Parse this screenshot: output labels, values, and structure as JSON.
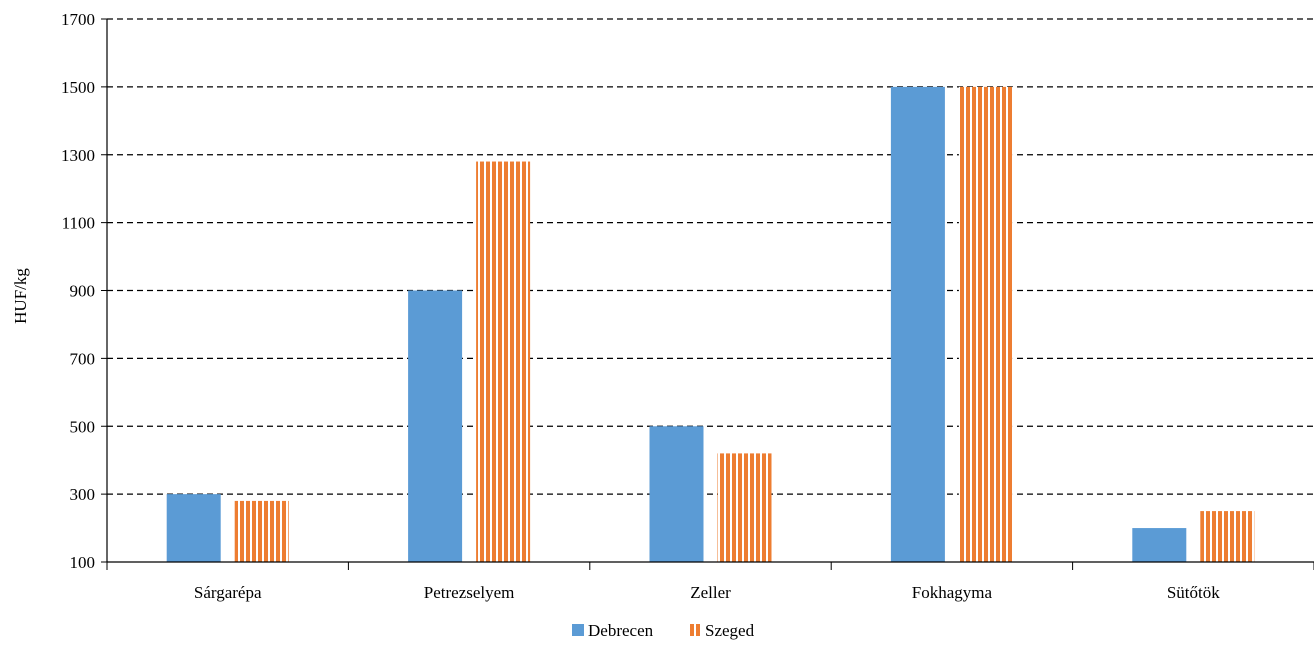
{
  "chart_data": {
    "type": "bar",
    "title": "",
    "xlabel": "",
    "ylabel": "HUF/kg",
    "ylim": [
      100,
      1700
    ],
    "yticks": [
      100,
      300,
      500,
      700,
      900,
      1100,
      1300,
      1500,
      1700
    ],
    "grid": "horizontal dashed",
    "legend_position": "bottom-center",
    "categories": [
      "Sárgarépa",
      "Petrezselyem",
      "Zeller",
      "Fokhagyma",
      "Sütőtök"
    ],
    "series": [
      {
        "name": "Debrecen",
        "values": [
          300,
          900,
          500,
          1500,
          200
        ],
        "color": "#5b9bd5",
        "pattern": "solid"
      },
      {
        "name": "Szeged",
        "values": [
          280,
          1280,
          420,
          1500,
          250
        ],
        "color": "#ed7d31",
        "pattern": "vertical-stripes"
      }
    ]
  }
}
